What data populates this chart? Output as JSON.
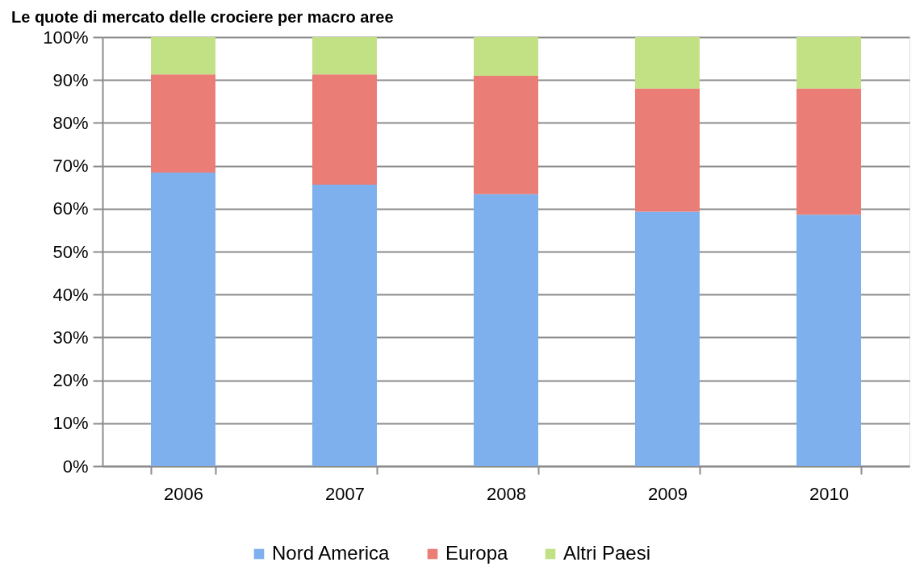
{
  "chart_data": {
    "type": "bar",
    "stacked": true,
    "title": "Le quote di mercato delle crociere per macro aree",
    "categories": [
      "2006",
      "2007",
      "2008",
      "2009",
      "2010"
    ],
    "series": [
      {
        "name": "Nord America",
        "color": "#7fb0ee",
        "values": [
          68.4,
          65.6,
          63.4,
          59.3,
          58.6
        ]
      },
      {
        "name": "Europa",
        "color": "#ea7d76",
        "values": [
          22.9,
          25.7,
          27.6,
          28.7,
          29.4
        ]
      },
      {
        "name": "Altri Paesi",
        "color": "#c2e184",
        "values": [
          8.7,
          8.7,
          9.0,
          12.0,
          12.0
        ]
      }
    ],
    "ylim": [
      0,
      100
    ],
    "yticks": [
      {
        "value": 0,
        "label": "0%"
      },
      {
        "value": 10,
        "label": "10%"
      },
      {
        "value": 20,
        "label": "20%"
      },
      {
        "value": 30,
        "label": "30%"
      },
      {
        "value": 40,
        "label": "40%"
      },
      {
        "value": 50,
        "label": "50%"
      },
      {
        "value": 60,
        "label": "60%"
      },
      {
        "value": 70,
        "label": "70%"
      },
      {
        "value": 80,
        "label": "80%"
      },
      {
        "value": 90,
        "label": "90%"
      },
      {
        "value": 100,
        "label": "100%"
      }
    ],
    "grid": "y",
    "legend": "bottom"
  }
}
